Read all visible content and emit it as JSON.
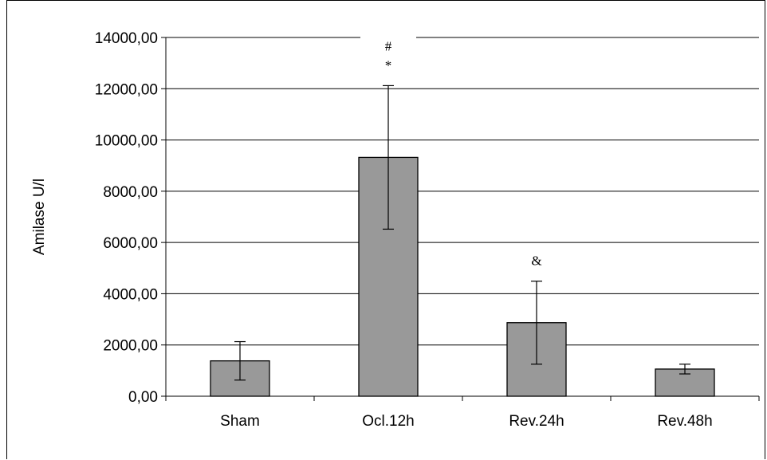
{
  "chart_data": {
    "type": "bar",
    "ylabel": "Amilase U/l",
    "ylim": [
      0,
      14000
    ],
    "y_ticks": [
      "0,00",
      "2000,00",
      "4000,00",
      "6000,00",
      "8000,00",
      "10000,00",
      "12000,00",
      "14000,00"
    ],
    "categories": [
      "Sham",
      "Ocl.12h",
      "Rev.24h",
      "Rev.48h"
    ],
    "values": [
      1380,
      9320,
      2870,
      1060
    ],
    "errors": [
      750,
      2800,
      1620,
      190
    ],
    "annotations": [
      {
        "category": "Ocl.12h",
        "lines": [
          "#",
          "*"
        ]
      },
      {
        "category": "Rev.24h",
        "lines": [
          "&"
        ]
      }
    ],
    "bar_color": "#999999",
    "grid": true,
    "legend": "none"
  }
}
